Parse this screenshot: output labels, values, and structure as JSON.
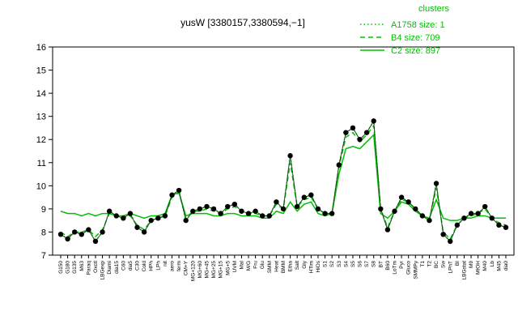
{
  "chart_data": {
    "type": "line",
    "title": "yusW [3380157,3380594,−1]",
    "categories": [
      "G150",
      "G180",
      "G135",
      "M63",
      "Paraq",
      "Oxctl",
      "LBGexp",
      "Diami",
      "dia15",
      "C60",
      "dia5",
      "C30",
      "Cold",
      "HPh",
      "LPh",
      "nit",
      "aero",
      "ferm",
      "CM+Y",
      "MG+120",
      "MG+60",
      "MG+45",
      "MG+25",
      "MG+15",
      "MG+5",
      "UVM",
      "Mal",
      "M/G",
      "Fru",
      "Glu",
      "SMM",
      "Heat",
      "BMM",
      "Etha",
      "Salt",
      "Gly",
      "HTim",
      "HiOs",
      "S1",
      "S2",
      "S3",
      "S4",
      "S5",
      "S6",
      "S7",
      "S8",
      "BT",
      "B60",
      "LoTm",
      "Pyr",
      "Gluco",
      "SMMPy",
      "T1",
      "T2",
      "BC",
      "Sw",
      "LPhT",
      "BI",
      "LBGstat",
      "M9",
      "MtOH",
      "M40",
      "Lb",
      "M45",
      "dia0"
    ],
    "values": [
      7.9,
      7.7,
      8.0,
      7.9,
      8.1,
      7.6,
      8.0,
      8.9,
      8.7,
      8.6,
      8.8,
      8.2,
      8.0,
      8.5,
      8.6,
      8.7,
      9.6,
      9.8,
      8.5,
      8.9,
      9.0,
      9.1,
      9.0,
      8.8,
      9.1,
      9.2,
      8.9,
      8.8,
      8.9,
      8.7,
      8.7,
      9.3,
      9.0,
      11.3,
      9.1,
      9.5,
      9.6,
      9.0,
      8.8,
      8.8,
      10.9,
      12.3,
      12.5,
      12.0,
      12.3,
      12.8,
      9.0,
      8.1,
      8.9,
      9.5,
      9.3,
      9.0,
      8.7,
      8.5,
      10.1,
      7.9,
      7.6,
      8.3,
      8.6,
      8.8,
      8.8,
      9.1,
      8.6,
      8.3,
      8.2
    ],
    "color": "#000000",
    "legend_title": "clusters",
    "series": [
      {
        "name": "A1758 size: 1",
        "color": "#00c000",
        "dash": "dotted",
        "values": [
          7.9,
          7.7,
          8.0,
          7.9,
          8.1,
          7.6,
          8.0,
          8.9,
          8.7,
          8.6,
          8.8,
          8.2,
          8.0,
          8.5,
          8.6,
          8.7,
          9.6,
          9.8,
          8.5,
          8.9,
          9.0,
          9.1,
          9.0,
          8.8,
          9.1,
          9.2,
          8.9,
          8.8,
          8.9,
          8.7,
          8.7,
          9.3,
          9.0,
          11.3,
          9.1,
          9.5,
          9.6,
          9.0,
          8.8,
          8.8,
          10.9,
          12.3,
          12.5,
          12.0,
          12.3,
          12.8,
          9.0,
          8.1,
          8.9,
          9.5,
          9.3,
          9.0,
          8.7,
          8.5,
          10.1,
          7.9,
          7.6,
          8.3,
          8.6,
          8.8,
          8.8,
          9.1,
          8.6,
          8.3,
          8.2
        ]
      },
      {
        "name": "B4 size: 709",
        "color": "#00c000",
        "dash": "dashed",
        "values": [
          8.0,
          7.8,
          8.0,
          8.0,
          8.1,
          7.8,
          8.1,
          8.8,
          8.7,
          8.6,
          8.7,
          8.3,
          8.1,
          8.5,
          8.6,
          8.7,
          9.5,
          9.7,
          8.6,
          8.9,
          8.9,
          9.0,
          8.9,
          8.8,
          9.0,
          9.1,
          8.9,
          8.8,
          8.8,
          8.7,
          8.7,
          9.2,
          9.0,
          11.0,
          9.1,
          9.4,
          9.5,
          9.0,
          8.8,
          8.8,
          10.8,
          12.1,
          12.3,
          11.9,
          12.2,
          12.6,
          9.0,
          8.2,
          8.9,
          9.4,
          9.3,
          9.0,
          8.7,
          8.5,
          9.9,
          8.0,
          7.7,
          8.3,
          8.6,
          8.7,
          8.8,
          9.0,
          8.6,
          8.4,
          8.3
        ]
      },
      {
        "name": "C2 size: 897",
        "color": "#00c000",
        "dash": "solid",
        "values": [
          8.9,
          8.8,
          8.8,
          8.7,
          8.8,
          8.7,
          8.8,
          8.8,
          8.7,
          8.7,
          8.8,
          8.7,
          8.6,
          8.7,
          8.7,
          8.8,
          9.6,
          9.7,
          8.7,
          8.8,
          8.8,
          8.8,
          8.7,
          8.7,
          8.8,
          8.8,
          8.7,
          8.7,
          8.7,
          8.6,
          8.6,
          8.9,
          8.8,
          9.3,
          8.9,
          9.2,
          9.3,
          8.8,
          8.7,
          8.8,
          10.5,
          11.6,
          11.7,
          11.6,
          11.9,
          12.2,
          8.8,
          8.6,
          8.9,
          9.3,
          9.2,
          8.9,
          8.7,
          8.6,
          9.4,
          8.6,
          8.5,
          8.5,
          8.6,
          8.6,
          8.7,
          8.7,
          8.6,
          8.6,
          8.6
        ]
      }
    ],
    "ylim": [
      7,
      16
    ],
    "yticks": [
      7,
      8,
      9,
      10,
      11,
      12,
      13,
      14,
      15,
      16
    ]
  }
}
